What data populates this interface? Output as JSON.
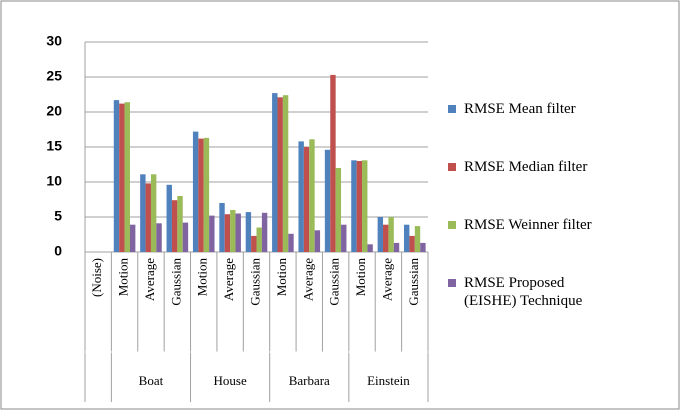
{
  "chart_data": {
    "type": "bar",
    "categories": [
      "(Noise)",
      "Motion",
      "Average",
      "Gaussian",
      "Motion",
      "Average",
      "Gaussian",
      "Motion",
      "Average",
      "Gaussian",
      "Motion",
      "Average",
      "Gaussian"
    ],
    "groups": [
      null,
      "Boat",
      null,
      null,
      "House",
      null,
      null,
      "Barbara",
      null,
      null,
      "Einstein",
      null,
      null
    ],
    "series": [
      {
        "name": "RMSE Mean filter",
        "color": "#4f81bd",
        "values": [
          null,
          21.7,
          11.1,
          9.6,
          17.2,
          7.0,
          5.7,
          22.7,
          15.8,
          14.6,
          13.1,
          5.0,
          3.9
        ]
      },
      {
        "name": "RMSE Median filter",
        "color": "#c0504d",
        "values": [
          null,
          21.2,
          9.8,
          7.4,
          16.2,
          5.4,
          2.3,
          22.1,
          15.0,
          25.3,
          13.0,
          3.9,
          2.3
        ]
      },
      {
        "name": "RMSE Weinner filter",
        "color": "#9bbb59",
        "values": [
          null,
          21.4,
          11.1,
          8.0,
          16.3,
          6.0,
          3.5,
          22.4,
          16.1,
          12.0,
          13.1,
          5.0,
          3.7
        ]
      },
      {
        "name": "RMSE Proposed (EISHE) Technique",
        "color": "#8064a2",
        "values": [
          null,
          3.9,
          4.1,
          4.2,
          5.2,
          5.5,
          5.6,
          2.6,
          3.1,
          3.9,
          1.1,
          1.3,
          1.3
        ]
      }
    ],
    "ylim": [
      0,
      30
    ],
    "yticks": [
      0,
      5,
      10,
      15,
      20,
      25,
      30
    ],
    "grid": true,
    "legend": "right"
  }
}
